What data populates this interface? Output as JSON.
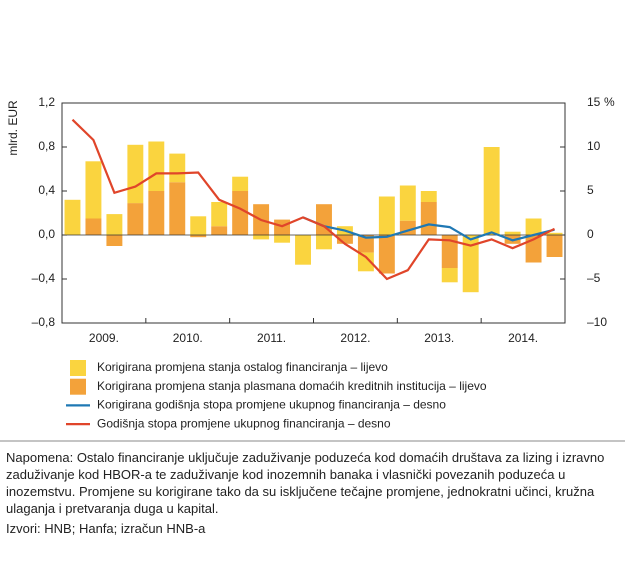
{
  "chart_data": {
    "type": "bar-line",
    "y_label": "mlrd. EUR",
    "y2_label": "%",
    "categories": [
      "2009.",
      null,
      null,
      null,
      "2010.",
      null,
      null,
      null,
      "2011.",
      null,
      null,
      null,
      "2012.",
      null,
      null,
      null,
      "2013.",
      null,
      null,
      null,
      "2014.",
      null,
      null,
      null
    ],
    "series": [
      {
        "name": "Korigirana promjena stanja ostalog financiranja – lijevo",
        "kind": "bar",
        "color": "#fad43f",
        "values": [
          0.32,
          0.52,
          0.19,
          0.53,
          0.45,
          0.26,
          0.17,
          0.22,
          0.13,
          -0.04,
          -0.07,
          -0.27,
          -0.13,
          0.08,
          -0.17,
          0.35,
          0.32,
          0.1,
          -0.13,
          -0.52,
          0.8,
          0.03,
          0.15,
          0.02
        ]
      },
      {
        "name": "Korigirana promjena stanja plasmana domaćih kreditnih institucija – lijevo",
        "kind": "bar",
        "color": "#f3a23a",
        "values": [
          0,
          0.15,
          -0.1,
          0.29,
          0.4,
          0.48,
          -0.02,
          0.08,
          0.4,
          0.28,
          0.14,
          0,
          0.28,
          -0.08,
          -0.16,
          -0.35,
          0.13,
          0.3,
          -0.3,
          0,
          0,
          -0.08,
          -0.25,
          -0.2
        ]
      },
      {
        "name": "Korigirana godišnja stopa promjene ukupnog financiranja – desno",
        "kind": "line",
        "axis": "y2",
        "color": "#1f78b4",
        "values": [
          null,
          null,
          null,
          null,
          null,
          null,
          null,
          null,
          null,
          null,
          null,
          2,
          1,
          0.5,
          -0.3,
          -0.2,
          0.5,
          1.2,
          0.9,
          -0.5,
          0.3,
          -0.6,
          0,
          0.6
        ]
      },
      {
        "name": "Godišnja stopa promjene ukupnog financiranja – desno",
        "kind": "line",
        "axis": "y2",
        "color": "#e0452a",
        "values": [
          13.1,
          10.8,
          4.8,
          5.5,
          7,
          7,
          7.1,
          4,
          3,
          1.7,
          1,
          2,
          1,
          -1,
          -2.5,
          -5,
          -4,
          -0.5,
          -0.6,
          -1.2,
          -0.5,
          -1.5,
          -0.5,
          0.7
        ]
      }
    ],
    "ylim": [
      -0.8,
      1.2
    ],
    "yticks": [
      {
        "value": -0.8,
        "label": "–0,8"
      },
      {
        "value": -0.4,
        "label": "–0,4"
      },
      {
        "value": 0,
        "label": "0,0"
      },
      {
        "value": 0.4,
        "label": "0,4"
      },
      {
        "value": 0.8,
        "label": "0,8"
      },
      {
        "value": 1.2,
        "label": "1,2"
      }
    ],
    "y2lim": [
      -10,
      15
    ],
    "y2ticks": [
      {
        "value": -10,
        "label": "–10"
      },
      {
        "value": -5,
        "label": "–5"
      },
      0,
      5,
      10,
      15
    ]
  },
  "note": "Napomena: Ostalo financiranje uključuje zaduživanje poduzeća kod domaćih društava za lizing i izravno zaduživanje kod HBOR-a te zaduživanje kod inozemnih banaka i vlasnički povezanih poduzeća u inozemstvu. Promjene su korigirane tako da su isključene tečajne promjene, jednokratni učinci, kružna ulaganja i pretvaranja duga u kapital.",
  "sources": "Izvori: HNB; Hanfa; izračun HNB-a"
}
